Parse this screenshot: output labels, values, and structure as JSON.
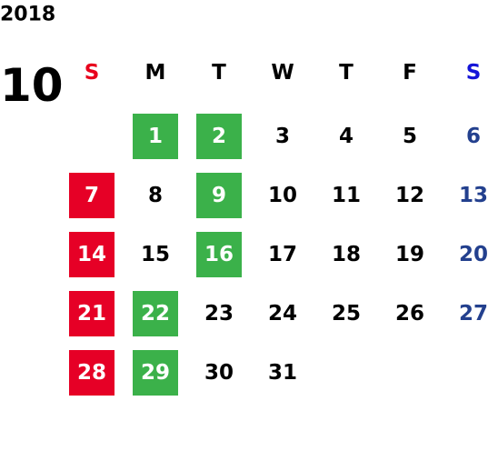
{
  "calendar": {
    "year": "2018",
    "month": "10",
    "weekdays": [
      "S",
      "M",
      "T",
      "W",
      "T",
      "F",
      "S"
    ],
    "weeks": [
      [
        null,
        {
          "text": "1",
          "highlight": "#3bb14a"
        },
        {
          "text": "2",
          "highlight": "#3bb14a"
        },
        {
          "text": "3"
        },
        {
          "text": "4"
        },
        {
          "text": "5"
        },
        {
          "text": "6"
        }
      ],
      [
        {
          "text": "7",
          "highlight": "#e60026"
        },
        {
          "text": "8"
        },
        {
          "text": "9",
          "highlight": "#3bb14a"
        },
        {
          "text": "10"
        },
        {
          "text": "11"
        },
        {
          "text": "12"
        },
        {
          "text": "13"
        }
      ],
      [
        {
          "text": "14",
          "highlight": "#e60026"
        },
        {
          "text": "15"
        },
        {
          "text": "16",
          "highlight": "#3bb14a"
        },
        {
          "text": "17"
        },
        {
          "text": "18"
        },
        {
          "text": "19"
        },
        {
          "text": "20"
        }
      ],
      [
        {
          "text": "21",
          "highlight": "#e60026"
        },
        {
          "text": "22",
          "highlight": "#3bb14a"
        },
        {
          "text": "23"
        },
        {
          "text": "24"
        },
        {
          "text": "25"
        },
        {
          "text": "26"
        },
        {
          "text": "27"
        }
      ],
      [
        {
          "text": "28",
          "highlight": "#e60026"
        },
        {
          "text": "29",
          "highlight": "#3bb14a"
        },
        {
          "text": "30"
        },
        {
          "text": "31"
        },
        null,
        null,
        null
      ]
    ]
  }
}
